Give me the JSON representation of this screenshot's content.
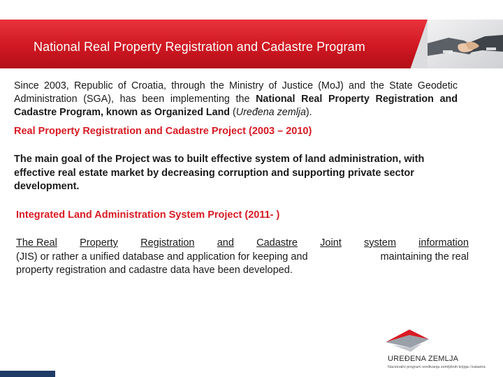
{
  "header": {
    "title": "National Real Property Registration and Cadastre Program"
  },
  "intro": {
    "text_before": "Since 2003, Republic of Croatia, through the Ministry of Justice (MoJ) and the State Geodetic Administration (SGA), has been implementing the ",
    "bold_program": "National Real Property Registration and Cadastre Program, known as Organized Land",
    "text_paren_open": " (",
    "italic_name": "Uređena zemlja",
    "text_end": ")."
  },
  "section1": {
    "heading": "Real Property Registration and Cadastre Project (2003 – 2010)",
    "body": "The main goal of the Project was to built effective system of land administration, with effective real estate market by decreasing corruption and supporting private sector development."
  },
  "section2": {
    "heading": "Integrated Land Administration System Project (2011- )",
    "line1_words": [
      "The Real",
      "Property",
      "Registration",
      "and",
      "Cadastre",
      "Joint",
      "system",
      "information"
    ],
    "line2_left": "(JIS) or rather a unified database and application for keeping and",
    "line2_right": "maintaining the real",
    "line3": "property registration and cadastre data have been developed."
  },
  "logo": {
    "name": "UREĐENA ZEMLJA",
    "subtitle": "Nacionalni program sređivanja zemljišnih knjiga i katastra"
  },
  "colors": {
    "accent_red": "#d81a23",
    "header_red": "#cf1822",
    "corner_blue": "#1f3b66"
  }
}
